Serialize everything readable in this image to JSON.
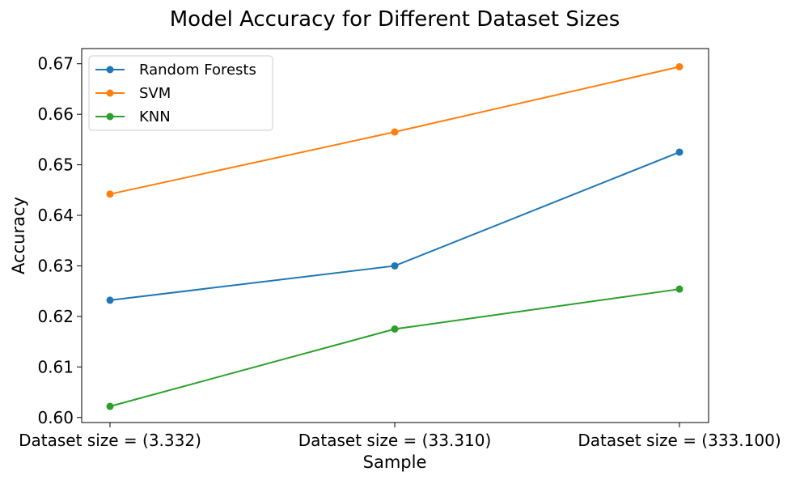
{
  "chart_data": {
    "type": "line",
    "title": "Model Accuracy for Different Dataset Sizes",
    "xlabel": "Sample",
    "ylabel": "Accuracy",
    "categories": [
      "Dataset size = (3.332)",
      "Dataset size = (33.310)",
      "Dataset size = (333.100)"
    ],
    "ylim": [
      0.599,
      0.673
    ],
    "yticks": [
      0.6,
      0.61,
      0.62,
      0.63,
      0.64,
      0.65,
      0.66,
      0.67
    ],
    "ytick_labels": [
      "0.60",
      "0.61",
      "0.62",
      "0.63",
      "0.64",
      "0.65",
      "0.66",
      "0.67"
    ],
    "grid": false,
    "legend_position": "top-left",
    "markers": "circle",
    "series": [
      {
        "name": "Random Forests",
        "color": "#1f77b4",
        "values": [
          0.6232,
          0.63,
          0.6525
        ]
      },
      {
        "name": "SVM",
        "color": "#ff7f0e",
        "values": [
          0.6442,
          0.6565,
          0.6694
        ]
      },
      {
        "name": "KNN",
        "color": "#2ca02c",
        "values": [
          0.6022,
          0.6175,
          0.6254
        ]
      }
    ]
  }
}
